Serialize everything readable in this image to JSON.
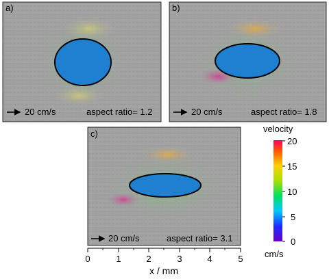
{
  "panels": [
    {
      "label": "a)",
      "scale": "20 cm/s",
      "aspect_text": "aspect ratio= 1.2"
    },
    {
      "label": "b)",
      "scale": "20 cm/s",
      "aspect_text": "aspect ratio= 1.8"
    },
    {
      "label": "c)",
      "scale": "20 cm/s",
      "aspect_text": "aspect ratio= 3.1"
    }
  ],
  "colorbar": {
    "title": "velocity",
    "unit": "cm/s",
    "ticks": [
      "20",
      "15",
      "10",
      "5",
      "0"
    ]
  },
  "x_axis": {
    "label": "x / mm",
    "ticks": [
      "0",
      "1",
      "2",
      "3",
      "4",
      "5"
    ]
  },
  "colors": {
    "background_field": "#a3a3a3",
    "obstacle_fill": "#1f7fd1",
    "obstacle_stroke": "#000000"
  }
}
